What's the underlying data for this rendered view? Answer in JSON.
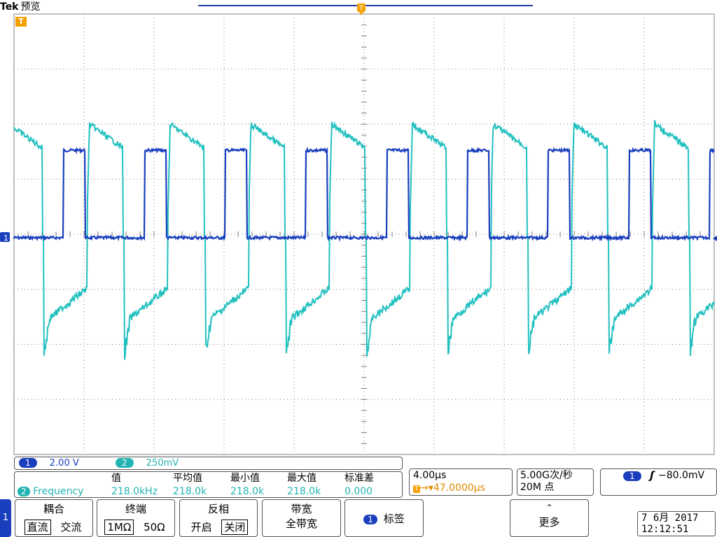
{
  "header": {
    "brand": "Tek",
    "mode": "预览"
  },
  "markers": {
    "trigger_position": "T",
    "trigger_level": "T",
    "ch1_ground": "1"
  },
  "colors": {
    "ch1": "#1a3fbe",
    "ch2": "#23c0c0",
    "grid": "#808080",
    "trigger": "#f4a000"
  },
  "channels": [
    {
      "badge": "1",
      "scale": "2.00 V"
    },
    {
      "badge": "2",
      "scale": "250mV"
    }
  ],
  "measurement": {
    "badge": "2",
    "name": "Frequency",
    "headers": [
      "值",
      "平均值",
      "最小值",
      "最大值",
      "标准差"
    ],
    "values": [
      "218.0kHz",
      "218.0k",
      "218.0k",
      "218.0k",
      "0.000"
    ]
  },
  "timebase": {
    "scale": "4.00µs",
    "trigger_icon": "T",
    "delay": "→▾47.0000µs"
  },
  "acquisition": {
    "sample_rate": "5.00G次/秒",
    "record_length": "20M 点"
  },
  "trigger": {
    "badge": "1",
    "slope_icon": "rising-edge-icon",
    "slope_glyph": "ʃ",
    "level": "−80.0mV"
  },
  "menu": {
    "channel_tab": "1",
    "coupling": {
      "title": "耦合",
      "options": [
        "直流",
        "交流"
      ],
      "selected": 0
    },
    "termination": {
      "title": "终端",
      "options": [
        "1MΩ",
        "50Ω"
      ],
      "selected": 0
    },
    "invert": {
      "title": "反相",
      "options": [
        "开启",
        "关闭"
      ],
      "selected": 1
    },
    "bandwidth": {
      "title": "带宽",
      "value": "全带宽"
    },
    "label": {
      "badge": "1",
      "title": "标签"
    },
    "more": {
      "title": "更多",
      "arrow": "⌃"
    }
  },
  "datetime": {
    "date": "7 6月  2017",
    "time": "12:12:51"
  }
}
